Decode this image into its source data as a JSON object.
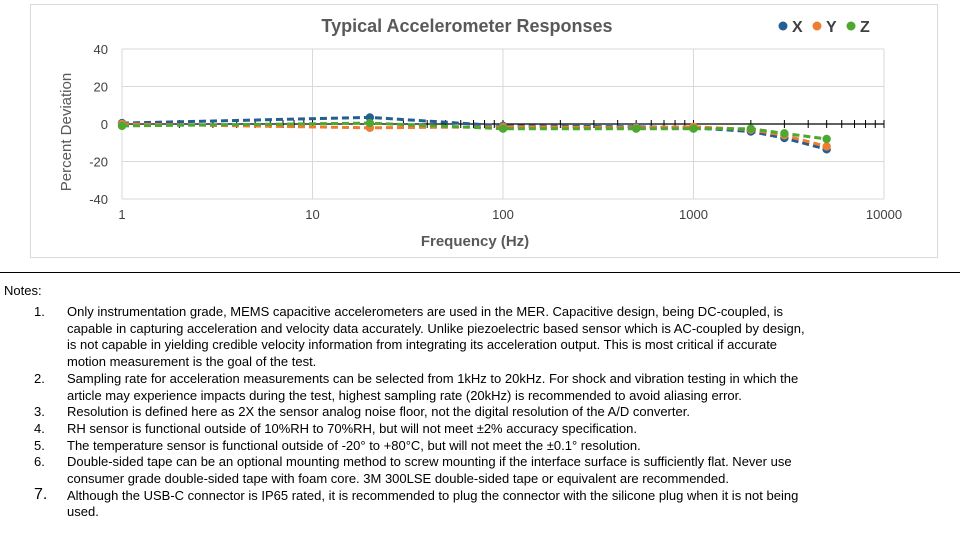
{
  "chart_data": {
    "type": "scatter",
    "title": "Typical Accelerometer Responses",
    "xlabel": "Frequency (Hz)",
    "ylabel": "Percent Deviation",
    "x_scale": "log",
    "xlim": [
      1,
      10000
    ],
    "ylim": [
      -40,
      40
    ],
    "x_ticks": [
      "1",
      "10",
      "100",
      "1000",
      "10000"
    ],
    "y_ticks": [
      "40",
      "20",
      "0",
      "-20",
      "-40"
    ],
    "grid": true,
    "legend_position": "top-right",
    "trendline": "dashed",
    "series": [
      {
        "name": "X",
        "color": "#255e91",
        "x": [
          1,
          20,
          100,
          500,
          1000,
          2000,
          3000,
          5000
        ],
        "y": [
          0.5,
          3.5,
          -1.0,
          -1.5,
          -2.0,
          -4.0,
          -7.5,
          -13.5
        ]
      },
      {
        "name": "Y",
        "color": "#ed7d31",
        "x": [
          1,
          20,
          100,
          500,
          1000,
          2000,
          3000,
          5000
        ],
        "y": [
          0.0,
          -2.0,
          -1.5,
          -2.0,
          -1.5,
          -3.0,
          -6.0,
          -12.0
        ]
      },
      {
        "name": "Z",
        "color": "#4ea72e",
        "x": [
          1,
          20,
          100,
          500,
          1000,
          2000,
          3000,
          5000
        ],
        "y": [
          -1.0,
          0.5,
          -2.5,
          -2.5,
          -2.5,
          -2.5,
          -5.0,
          -8.0
        ]
      }
    ]
  },
  "notes": {
    "label": "Notes:",
    "items": [
      {
        "num": "1.",
        "lines": [
          "Only instrumentation grade, MEMS capacitive accelerometers are used in the MER.  Capacitive design, being DC-coupled, is",
          "capable in capturing acceleration and velocity data accurately.  Unlike piezoelectric based sensor which is AC-coupled by design,",
          "is not capable in yielding credible velocity information from integrating its acceleration output.  This is most critical if accurate",
          "motion measurement is the goal of the test."
        ]
      },
      {
        "num": "2.",
        "lines": [
          "Sampling rate for acceleration measurements can be selected from 1kHz to 20kHz.  For shock and vibration testing in which the",
          "article may experience impacts during the test, highest sampling rate (20kHz) is recommended to avoid aliasing error."
        ]
      },
      {
        "num": "3.",
        "lines": [
          "Resolution is defined here as 2X the sensor analog noise floor, not the digital resolution of the A/D converter."
        ]
      },
      {
        "num": "4.",
        "lines": [
          "RH sensor is functional outside of 10%RH to 70%RH, but will not meet ±2% accuracy specification."
        ]
      },
      {
        "num": "5.",
        "lines": [
          "The temperature sensor is functional outside of -20° to +80°C, but will not meet the ±0.1° resolution."
        ]
      },
      {
        "num": "6.",
        "lines": [
          "Double-sided tape can be an optional mounting method to screw mounting if the interface surface is sufficiently flat.  Never use",
          "consumer grade double-sided tape with foam core.  3M 300LSE double-sided tape or equivalent are recommended."
        ]
      },
      {
        "num": "7.",
        "big": true,
        "lines": [
          "Although the USB-C connector is IP65 rated, it is recommended to plug the connector with the silicone plug when it is not being",
          "used."
        ]
      }
    ]
  }
}
